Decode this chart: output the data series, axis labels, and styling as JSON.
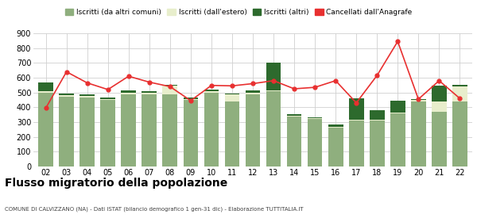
{
  "years": [
    "02",
    "03",
    "04",
    "05",
    "06",
    "07",
    "08",
    "09",
    "10",
    "11",
    "12",
    "13",
    "14",
    "15",
    "16",
    "17",
    "18",
    "19",
    "20",
    "21",
    "22"
  ],
  "iscritti_comuni": [
    500,
    470,
    465,
    450,
    490,
    490,
    490,
    450,
    500,
    440,
    490,
    510,
    340,
    320,
    265,
    310,
    310,
    360,
    440,
    370,
    440
  ],
  "iscritti_estero": [
    10,
    10,
    10,
    8,
    8,
    8,
    55,
    8,
    10,
    45,
    8,
    5,
    5,
    5,
    5,
    5,
    5,
    5,
    8,
    70,
    100
  ],
  "iscritti_altri": [
    60,
    15,
    10,
    8,
    18,
    10,
    8,
    8,
    12,
    10,
    15,
    185,
    8,
    5,
    15,
    145,
    65,
    80,
    10,
    105,
    12
  ],
  "cancellati": [
    395,
    640,
    565,
    520,
    610,
    570,
    540,
    445,
    548,
    545,
    560,
    580,
    525,
    535,
    580,
    430,
    615,
    845,
    455,
    580,
    460
  ],
  "color_comuni": "#8faf7e",
  "color_estero": "#e8eecc",
  "color_altri": "#2d6a2d",
  "color_cancellati": "#e83030",
  "ylim": [
    0,
    900
  ],
  "yticks": [
    0,
    100,
    200,
    300,
    400,
    500,
    600,
    700,
    800,
    900
  ],
  "title": "Flusso migratorio della popolazione",
  "subtitle": "COMUNE DI CALVIZZANO (NA) - Dati ISTAT (bilancio demografico 1 gen-31 dic) - Elaborazione TUTTITALIA.IT",
  "legend_labels": [
    "Iscritti (da altri comuni)",
    "Iscritti (dall'estero)",
    "Iscritti (altri)",
    "Cancellati dall'Anagrafe"
  ],
  "bg_color": "#ffffff",
  "grid_color": "#d0d0d0"
}
